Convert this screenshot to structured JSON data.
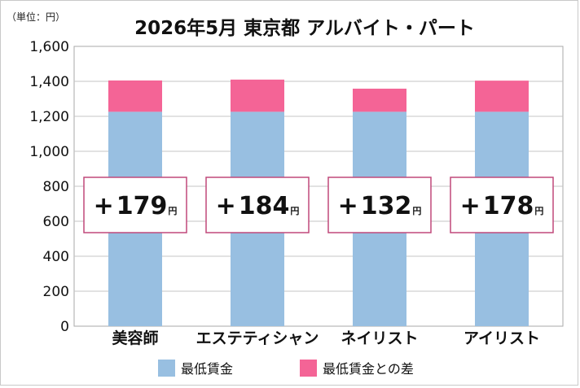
{
  "chart_data": {
    "type": "bar",
    "stacked": true,
    "unit_label": "（単位：円）",
    "title": "2026年5月 東京都 アルバイト・パート",
    "categories": [
      "美容師",
      "エステティシャン",
      "ネイリスト",
      "アイリスト"
    ],
    "series": [
      {
        "name": "最低賃金",
        "values": [
          1226,
          1226,
          1226,
          1226
        ],
        "color": "#98bfe1"
      },
      {
        "name": "最低賃金との差",
        "values": [
          179,
          184,
          132,
          178
        ],
        "color": "#f46496"
      }
    ],
    "annotations": [
      {
        "sign": "+",
        "value": "179",
        "unit": "円"
      },
      {
        "sign": "+",
        "value": "184",
        "unit": "円"
      },
      {
        "sign": "+",
        "value": "132",
        "unit": "円"
      },
      {
        "sign": "+",
        "value": "178",
        "unit": "円"
      }
    ],
    "ylim": [
      0,
      1600
    ],
    "yticks": [
      "0",
      "200",
      "400",
      "600",
      "800",
      "1,000",
      "1,200",
      "1,400",
      "1,600"
    ],
    "grid": true,
    "legend_position": "bottom",
    "annotation_border_color": "#c0487a"
  }
}
